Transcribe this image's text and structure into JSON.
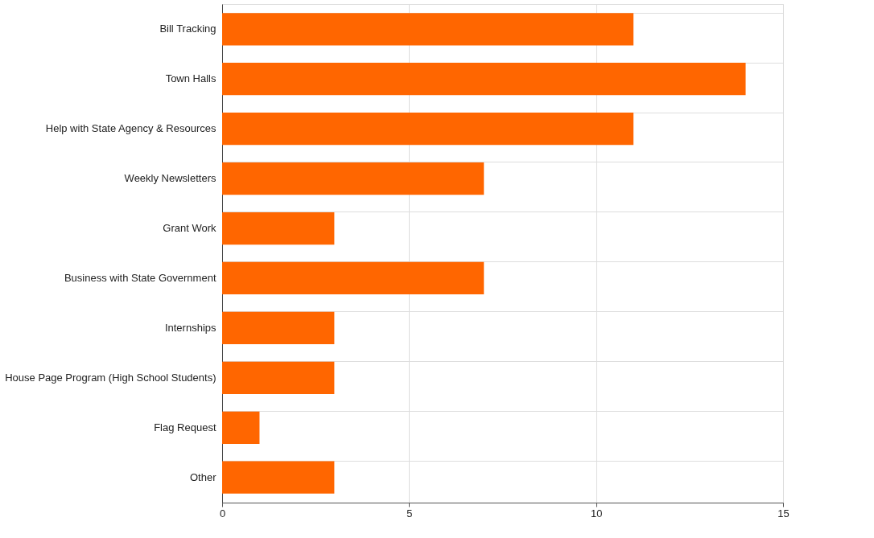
{
  "chart_data": {
    "type": "bar",
    "orientation": "horizontal",
    "categories": [
      "Bill Tracking",
      "Town Halls",
      "Help with State Agency & Resources",
      "Weekly Newsletters",
      "Grant Work",
      "Business with State Government",
      "Internships",
      "House Page Program (High School Students)",
      "Flag Request",
      "Other"
    ],
    "values": [
      11,
      14,
      11,
      7,
      3,
      7,
      3,
      3,
      1,
      3
    ],
    "color": "#ff6600",
    "xlim": [
      0,
      15
    ],
    "xticks": [
      0,
      5,
      10,
      15
    ],
    "grid": true
  }
}
